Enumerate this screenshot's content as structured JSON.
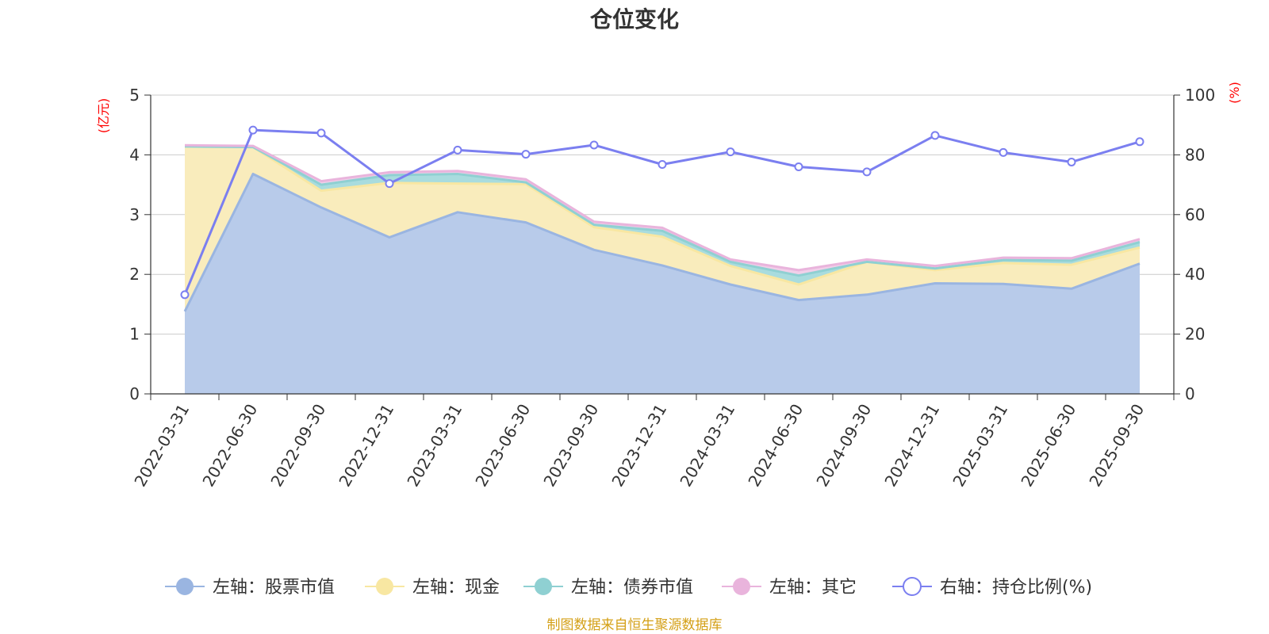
{
  "chart_data": {
    "type": "area",
    "title": "仓位变化",
    "left_axis": {
      "unit_label": "(亿元)",
      "ylim": [
        0,
        5
      ],
      "ticks": [
        "0",
        "1",
        "2",
        "3",
        "4",
        "5"
      ]
    },
    "right_axis": {
      "unit_label": "(%)",
      "ylim": [
        0,
        100
      ],
      "ticks": [
        "0",
        "20",
        "40",
        "60",
        "80",
        "100"
      ]
    },
    "categories": [
      "2022-03-31",
      "2022-06-30",
      "2022-09-30",
      "2022-12-31",
      "2023-03-31",
      "2023-06-30",
      "2023-09-30",
      "2023-12-31",
      "2024-03-31",
      "2024-06-30",
      "2024-09-30",
      "2024-12-31",
      "2025-03-31",
      "2025-06-30",
      "2025-09-30"
    ],
    "series": [
      {
        "name": "左轴：股票市值",
        "axis": "left",
        "kind": "stacked-area",
        "color": "#9ab5e1",
        "fill": "#b8cbea",
        "values": [
          1.38,
          3.68,
          3.12,
          2.62,
          3.04,
          2.87,
          2.41,
          2.15,
          1.83,
          1.57,
          1.66,
          1.85,
          1.84,
          1.76,
          2.18
        ]
      },
      {
        "name": "左轴：现金",
        "axis": "left",
        "kind": "stacked-area",
        "color": "#f8e7a2",
        "fill": "#f9ecbc",
        "values": [
          2.76,
          0.45,
          0.28,
          0.91,
          0.48,
          0.64,
          0.38,
          0.48,
          0.31,
          0.26,
          0.55,
          0.22,
          0.35,
          0.4,
          0.27
        ]
      },
      {
        "name": "左轴：债券市值",
        "axis": "left",
        "kind": "stacked-area",
        "color": "#8fd0d2",
        "fill": "#a9dcde",
        "values": [
          0,
          0,
          0.1,
          0.13,
          0.16,
          0.03,
          0.04,
          0.1,
          0.07,
          0.15,
          0,
          0.03,
          0.05,
          0.07,
          0.09
        ]
      },
      {
        "name": "左轴：其它",
        "axis": "left",
        "kind": "stacked-area",
        "color": "#e9b4dc",
        "fill": "#f1cfe9",
        "values": [
          0.02,
          0.02,
          0.06,
          0.05,
          0.05,
          0.05,
          0.05,
          0.05,
          0.04,
          0.09,
          0.04,
          0.04,
          0.04,
          0.04,
          0.05
        ]
      },
      {
        "name": "右轴：持仓比例(%)",
        "axis": "right",
        "kind": "line",
        "color": "#7b7ff0",
        "values": [
          33.2,
          88.3,
          87.3,
          70.4,
          81.6,
          80.2,
          83.3,
          76.8,
          81.0,
          76.0,
          74.3,
          86.5,
          80.8,
          77.6,
          84.4
        ]
      }
    ],
    "grid": true,
    "legend_position": "bottom",
    "source_note": "制图数据来自恒生聚源数据库"
  },
  "colors": {
    "axis": "#333333",
    "grid": "#cccccc",
    "unit_label": "#ff0000",
    "footer": "#d4a017",
    "line_point_fill": "#ffffff"
  }
}
